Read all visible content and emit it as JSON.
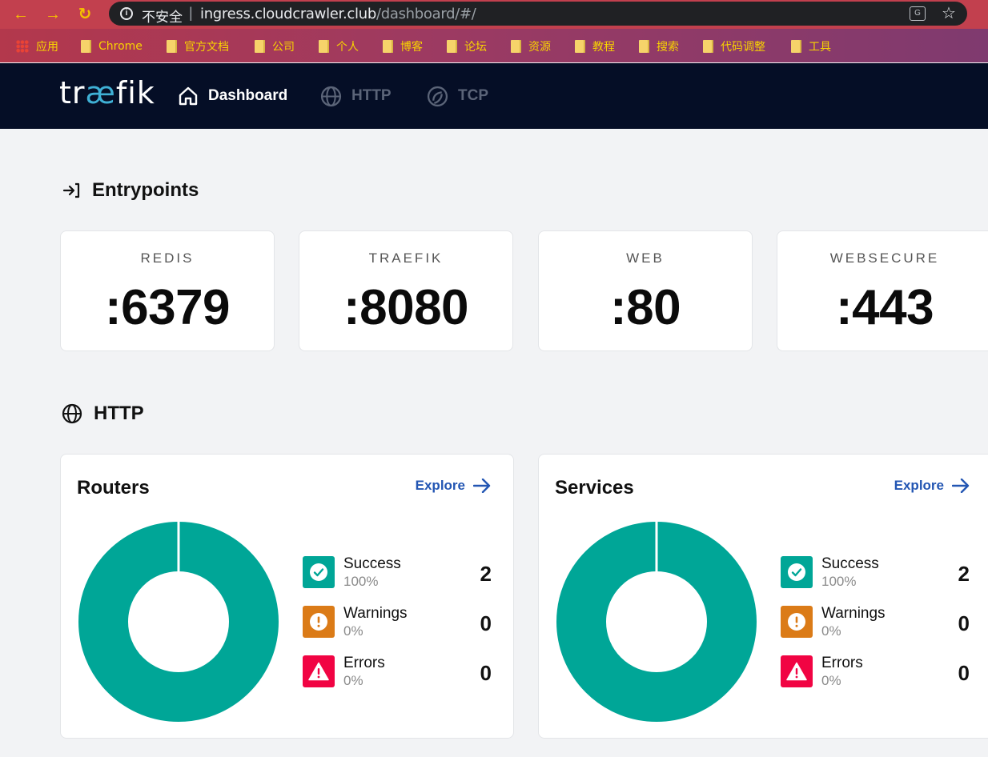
{
  "browser": {
    "insecure_label": "不安全",
    "url_host": "ingress.cloudcrawler.club",
    "url_path": "/dashboard/#/",
    "bookmarks": [
      {
        "label": "应用",
        "icon": "apps-grid-icon"
      },
      {
        "label": "Chrome",
        "icon": "folder-icon"
      },
      {
        "label": "官方文档",
        "icon": "folder-icon"
      },
      {
        "label": "公司",
        "icon": "folder-icon"
      },
      {
        "label": "个人",
        "icon": "folder-icon"
      },
      {
        "label": "博客",
        "icon": "folder-icon"
      },
      {
        "label": "论坛",
        "icon": "folder-icon"
      },
      {
        "label": "资源",
        "icon": "folder-icon"
      },
      {
        "label": "教程",
        "icon": "folder-icon"
      },
      {
        "label": "搜索",
        "icon": "folder-icon"
      },
      {
        "label": "代码调整",
        "icon": "folder-icon"
      },
      {
        "label": "工具",
        "icon": "folder-icon"
      }
    ]
  },
  "header": {
    "logo_pre": "tr",
    "logo_ae": "æ",
    "logo_post": "fik",
    "nav": [
      {
        "label": "Dashboard",
        "icon": "home-icon",
        "active": true
      },
      {
        "label": "HTTP",
        "icon": "globe-icon",
        "active": false
      },
      {
        "label": "TCP",
        "icon": "tcp-icon",
        "active": false
      }
    ]
  },
  "entrypoints": {
    "title": "Entrypoints",
    "items": [
      {
        "name": "REDIS",
        "port": ":6379"
      },
      {
        "name": "TRAEFIK",
        "port": ":8080"
      },
      {
        "name": "WEB",
        "port": ":80"
      },
      {
        "name": "WEBSECURE",
        "port": ":443"
      }
    ]
  },
  "http": {
    "title": "HTTP",
    "explore_label": "Explore",
    "cards": [
      {
        "title": "Routers",
        "legend": [
          {
            "label": "Success",
            "pct": "100%",
            "count": "2"
          },
          {
            "label": "Warnings",
            "pct": "0%",
            "count": "0"
          },
          {
            "label": "Errors",
            "pct": "0%",
            "count": "0"
          }
        ]
      },
      {
        "title": "Services",
        "legend": [
          {
            "label": "Success",
            "pct": "100%",
            "count": "2"
          },
          {
            "label": "Warnings",
            "pct": "0%",
            "count": "0"
          },
          {
            "label": "Errors",
            "pct": "0%",
            "count": "0"
          }
        ]
      }
    ]
  },
  "colors": {
    "success": "#00a697",
    "warning": "#db7b17",
    "error": "#f10443",
    "header_bg": "#050e26",
    "link": "#2356b3"
  }
}
